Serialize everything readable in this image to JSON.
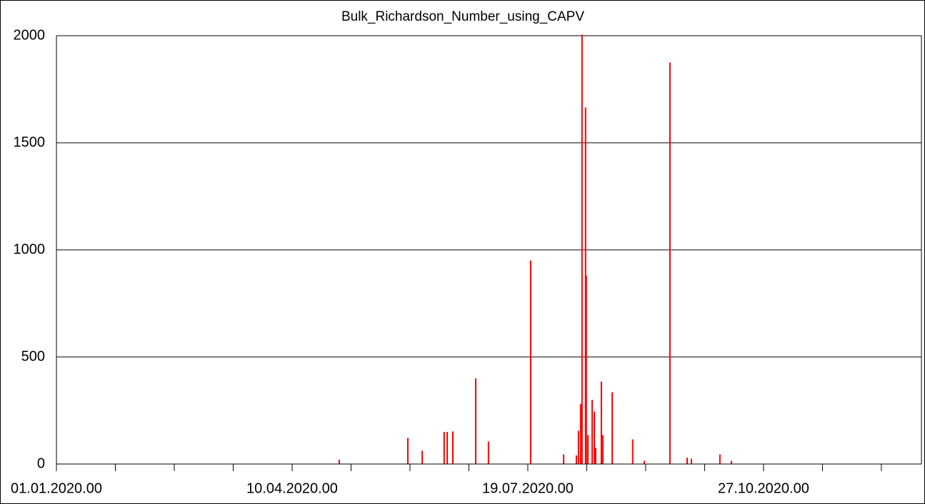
{
  "chart_data": {
    "type": "bar",
    "title": "Bulk_Richardson_Number_using_CAPV",
    "color": "#ff0000",
    "x": [
      120,
      149.1,
      155.2,
      164.5,
      165.8,
      168.2,
      177.9,
      183.3,
      201.2,
      215.2,
      220.6,
      221.5,
      222.4,
      223.0,
      224.5,
      224.8,
      225.5,
      227.3,
      228.2,
      228.8,
      231.2,
      231.8,
      235.8,
      244.5,
      249.4,
      260.3,
      267.6,
      269.4,
      281.5,
      286.4
    ],
    "values": [
      20,
      122,
      62,
      150,
      150,
      152,
      400,
      105,
      950,
      45,
      40,
      155,
      280,
      2005,
      1665,
      880,
      135,
      300,
      245,
      75,
      385,
      135,
      335,
      115,
      15,
      1875,
      30,
      25,
      45,
      15
    ],
    "xlim": [
      0,
      367
    ],
    "xticks": [
      {
        "value": 0,
        "label": "01.01.2020.00"
      },
      {
        "value": 100,
        "label": "10.04.2020.00"
      },
      {
        "value": 200,
        "label": "19.07.2020.00"
      },
      {
        "value": 300,
        "label": "27.10.2020.00"
      }
    ],
    "xminor_ticks": [
      25,
      50,
      75,
      125,
      150,
      175,
      225,
      250,
      275,
      325,
      350
    ],
    "ylim": [
      0,
      2000
    ],
    "yticks": [
      0,
      500,
      1000,
      1500,
      2000
    ],
    "grid": true
  }
}
